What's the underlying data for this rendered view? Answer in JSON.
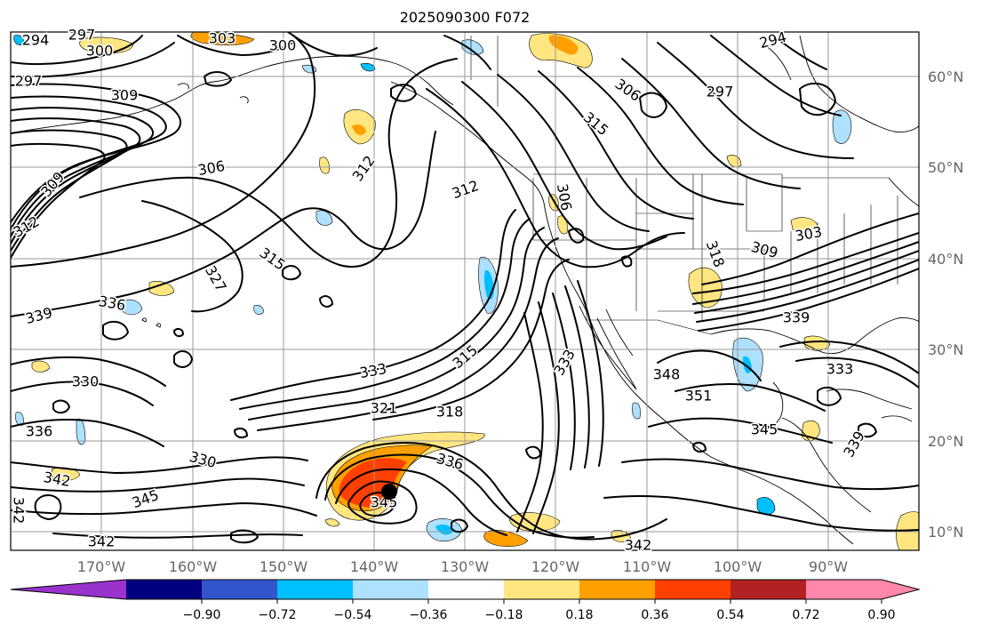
{
  "title": "2025090300 F072",
  "lat_labels": [
    "60°N",
    "50°N",
    "40°N",
    "30°N",
    "20°N",
    "10°N"
  ],
  "lon_labels": [
    "170°W",
    "160°W",
    "150°W",
    "140°W",
    "130°W",
    "120°W",
    "110°W",
    "100°W",
    "90°W"
  ],
  "colorbar": {
    "ticks": [
      "−0.90",
      "−0.72",
      "−0.54",
      "−0.36",
      "−0.18",
      "0.18",
      "0.36",
      "0.54",
      "0.72",
      "0.90"
    ],
    "colors": [
      "#9933cc",
      "#000080",
      "#3355cc",
      "#00bfff",
      "#aee0ff",
      "#ffffff",
      "#ffe680",
      "#ffa000",
      "#ff4000",
      "#b22222",
      "#ff88aa"
    ]
  },
  "contour_labels": [
    "294",
    "297",
    "300",
    "297",
    "303",
    "300",
    "309",
    "306",
    "297",
    "294",
    "312",
    "306",
    "309",
    "312",
    "315",
    "312",
    "306",
    "327",
    "315",
    "336",
    "339",
    "339",
    "330",
    "333",
    "315",
    "333",
    "321",
    "318",
    "348",
    "351",
    "303",
    "309",
    "318",
    "336",
    "330",
    "342",
    "345",
    "336",
    "342",
    "345",
    "342",
    "345",
    "342",
    "333",
    "339"
  ],
  "storm_marker": "tropical-cyclone-center"
}
